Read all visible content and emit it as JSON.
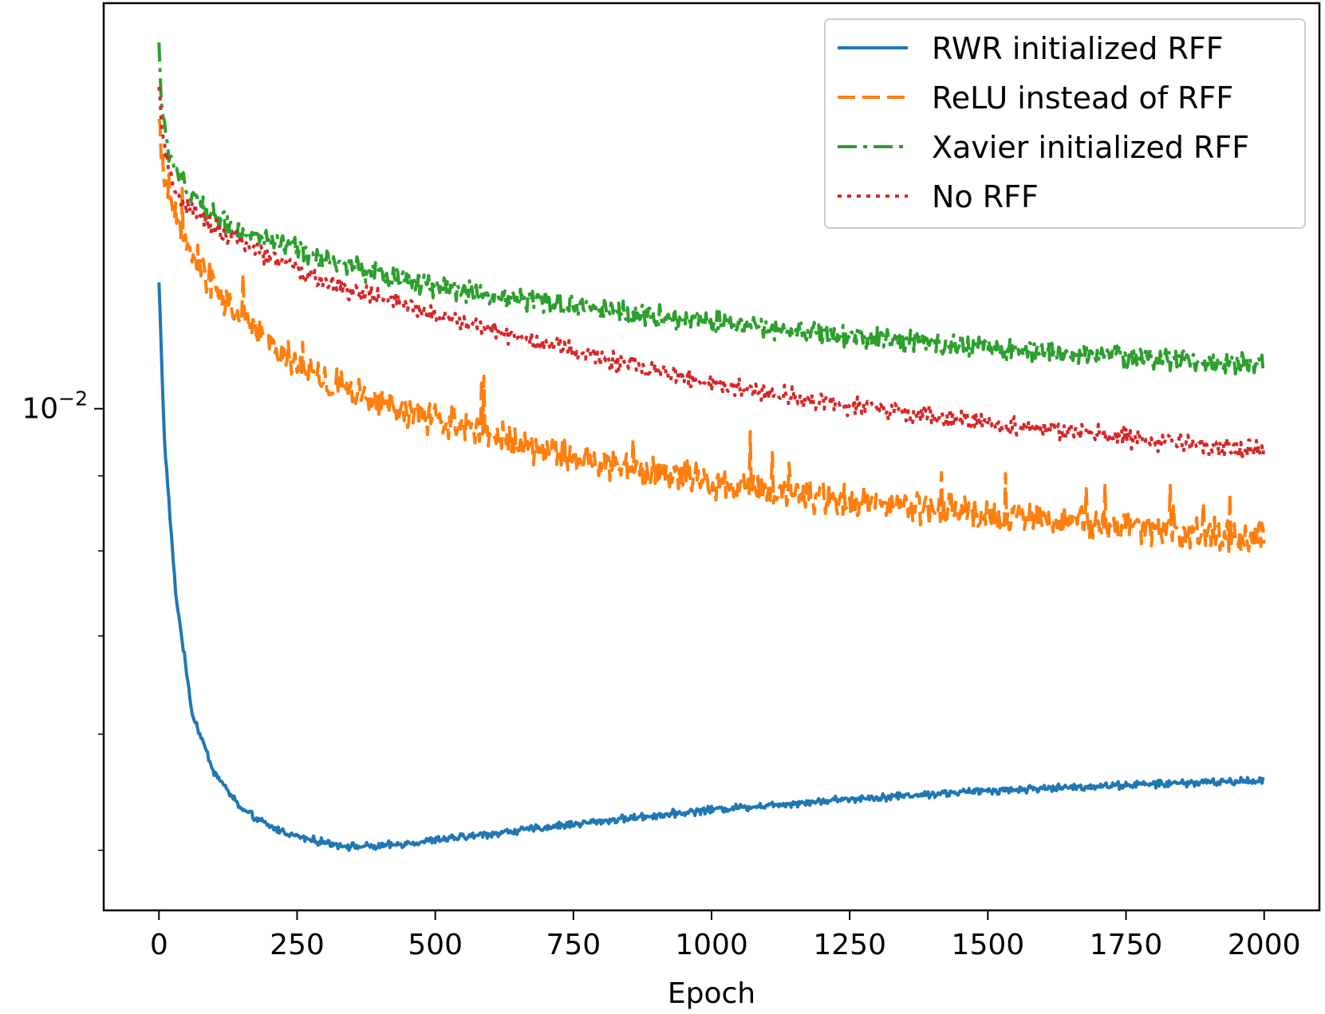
{
  "chart_data": {
    "type": "line",
    "title": "",
    "xlabel": "Epoch",
    "ylabel": "",
    "yscale": "log",
    "xlim": [
      -100,
      2100
    ],
    "ylim": [
      0.00455,
      0.0189
    ],
    "grid": false,
    "legend_position": "top-right",
    "x_ticks": [
      0,
      250,
      500,
      750,
      1000,
      1250,
      1500,
      1750,
      2000
    ],
    "x_tick_labels": [
      "0",
      "250",
      "500",
      "750",
      "1000",
      "1250",
      "1500",
      "1750",
      "2000"
    ],
    "y_major_ticks": [
      0.01
    ],
    "y_major_tick_labels": [
      "10"
    ],
    "y_major_tick_exponent": "−2",
    "y_minor_ticks": [
      0.005,
      0.006,
      0.007,
      0.008,
      0.009
    ],
    "series": [
      {
        "name": "RWR initialized RFF",
        "color": "#1f77b4",
        "style": "solid",
        "x": [
          0,
          10,
          30,
          60,
          100,
          150,
          200,
          250,
          300,
          350,
          400,
          500,
          600,
          750,
          1000,
          1250,
          1500,
          1750,
          2000
        ],
        "y": [
          0.0122,
          0.0095,
          0.0075,
          0.0062,
          0.00565,
          0.00533,
          0.00519,
          0.00511,
          0.00506,
          0.00503,
          0.00503,
          0.00508,
          0.00513,
          0.00521,
          0.00533,
          0.00542,
          0.00549,
          0.00554,
          0.00558
        ],
        "noise": 0.007
      },
      {
        "name": "ReLU instead of RFF",
        "color": "#ff7f0e",
        "style": "dashed",
        "x": [
          0,
          5,
          20,
          50,
          100,
          150,
          200,
          250,
          300,
          400,
          500,
          750,
          1000,
          1250,
          1500,
          1750,
          2000
        ],
        "y": [
          0.0158,
          0.0148,
          0.0138,
          0.013,
          0.01205,
          0.0115,
          0.0111,
          0.0107,
          0.01045,
          0.0101,
          0.00985,
          0.00925,
          0.0089,
          0.00865,
          0.00848,
          0.00832,
          0.00815
        ],
        "noise": 0.03
      },
      {
        "name": "Xavier initialized RFF",
        "color": "#2ca02c",
        "style": "dashdot",
        "x": [
          0,
          5,
          20,
          50,
          100,
          150,
          200,
          300,
          400,
          500,
          750,
          1000,
          1250,
          1500,
          1750,
          2000
        ],
        "y": [
          0.0178,
          0.016,
          0.0148,
          0.0141,
          0.01355,
          0.0132,
          0.013,
          0.01265,
          0.01235,
          0.0121,
          0.01175,
          0.01145,
          0.0112,
          0.011,
          0.01085,
          0.01072
        ],
        "noise": 0.02
      },
      {
        "name": "No RFF",
        "color": "#d62728",
        "style": "dotted",
        "x": [
          0,
          5,
          20,
          50,
          100,
          150,
          200,
          300,
          400,
          500,
          750,
          1000,
          1250,
          1500,
          1750,
          2000
        ],
        "y": [
          0.0166,
          0.0155,
          0.0143,
          0.0137,
          0.0133,
          0.01295,
          0.0127,
          0.0122,
          0.0119,
          0.0116,
          0.01095,
          0.0104,
          0.01005,
          0.00978,
          0.00955,
          0.00935
        ],
        "noise": 0.018
      }
    ]
  }
}
